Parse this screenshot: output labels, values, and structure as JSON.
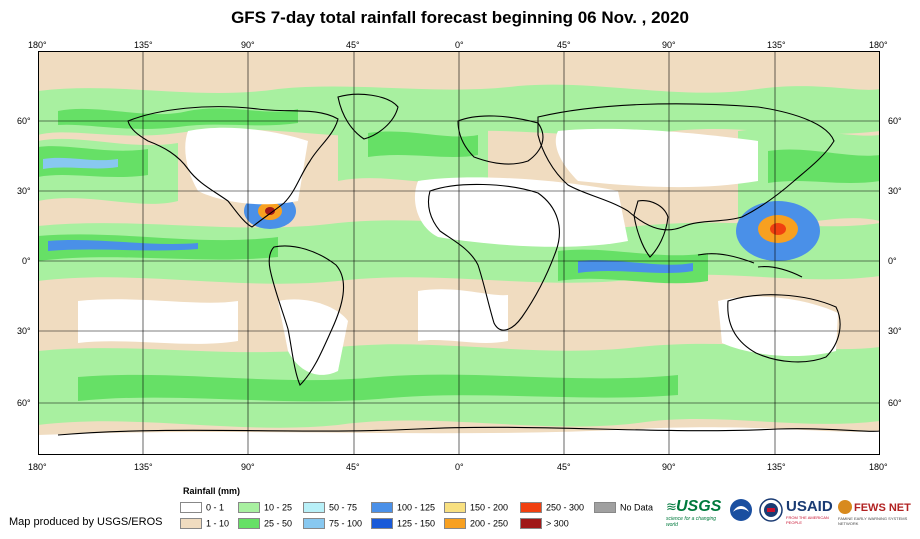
{
  "title": "GFS 7-day total rainfall forecast beginning 06 Nov. , 2020",
  "axes": {
    "lon_labels": [
      "180°",
      "135°",
      "90°",
      "45°",
      "0°",
      "45°",
      "90°",
      "135°",
      "180°"
    ],
    "lat_labels": [
      "60°",
      "30°",
      "0°",
      "30°",
      "60°"
    ]
  },
  "legend": {
    "title": "Rainfall (mm)",
    "items": [
      {
        "label": "0 - 1",
        "color": "#ffffff"
      },
      {
        "label": "1 - 10",
        "color": "#f0dcc0"
      },
      {
        "label": "10 - 25",
        "color": "#a8f0a0"
      },
      {
        "label": "25 - 50",
        "color": "#66e066"
      },
      {
        "label": "50 - 75",
        "color": "#b8f0f8"
      },
      {
        "label": "75 - 100",
        "color": "#88c8f0"
      },
      {
        "label": "100 - 125",
        "color": "#4a90e8"
      },
      {
        "label": "125 - 150",
        "color": "#1a5ad8"
      },
      {
        "label": "150 - 200",
        "color": "#f8e080"
      },
      {
        "label": "200 - 250",
        "color": "#f8a020"
      },
      {
        "label": "250 - 300",
        "color": "#f04010"
      },
      {
        "label": "> 300",
        "color": "#a01818"
      },
      {
        "label": "No Data",
        "color": "#a0a0a0"
      }
    ]
  },
  "credit": "Map produced by USGS/EROS",
  "logos": {
    "usgs": "USGS",
    "usgs_tagline": "science for a changing world",
    "usaid": "USAID",
    "usaid_tagline": "FROM THE AMERICAN PEOPLE",
    "fews": "FEWS NET",
    "fews_tagline": "FAMINE EARLY WARNING SYSTEMS NETWORK"
  }
}
